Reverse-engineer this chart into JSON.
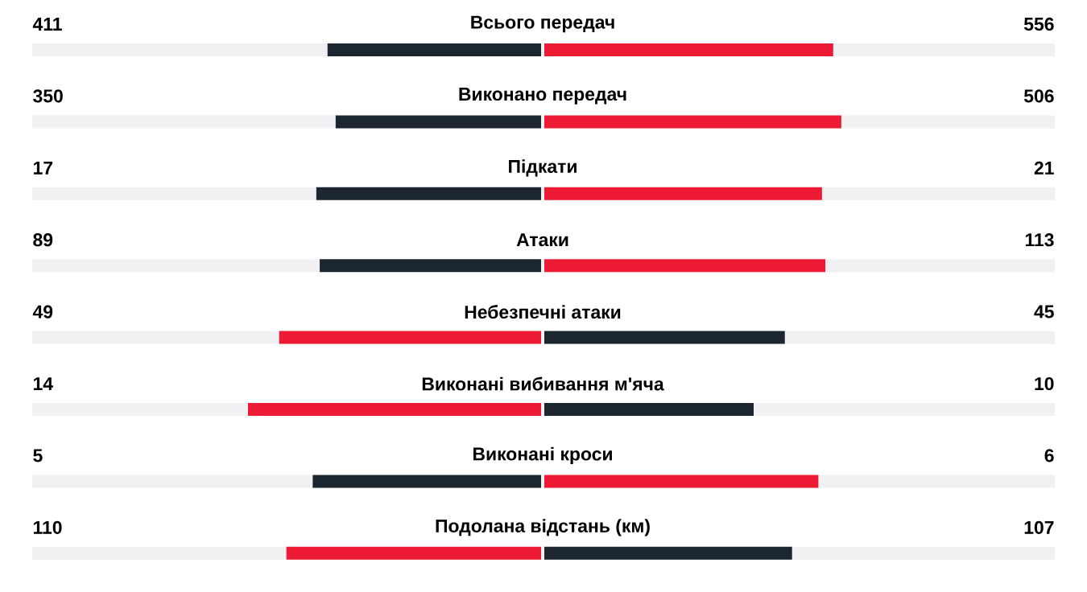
{
  "chart_data": {
    "type": "other",
    "categories": [
      "Всього передач",
      "Виконано передач",
      "Підкати",
      "Атаки",
      "Небезпечні атаки",
      "Виконані вибивання м'яча",
      "Виконані кроси",
      "Подолана відстань (км)"
    ],
    "series": [
      {
        "values": [
          411,
          350,
          17,
          89,
          49,
          14,
          5,
          110
        ],
        "colors": [
          "#1c2630",
          "#1c2630",
          "#1c2630",
          "#1c2630",
          "#ec1b33",
          "#ec1b33",
          "#1c2630",
          "#ec1b33"
        ]
      },
      {
        "values": [
          556,
          506,
          21,
          113,
          45,
          10,
          6,
          107
        ],
        "colors": [
          "#ec1b33",
          "#ec1b33",
          "#ec1b33",
          "#ec1b33",
          "#1c2630",
          "#1c2630",
          "#ec1b33",
          "#1c2630"
        ]
      }
    ],
    "data_labels": true
  }
}
